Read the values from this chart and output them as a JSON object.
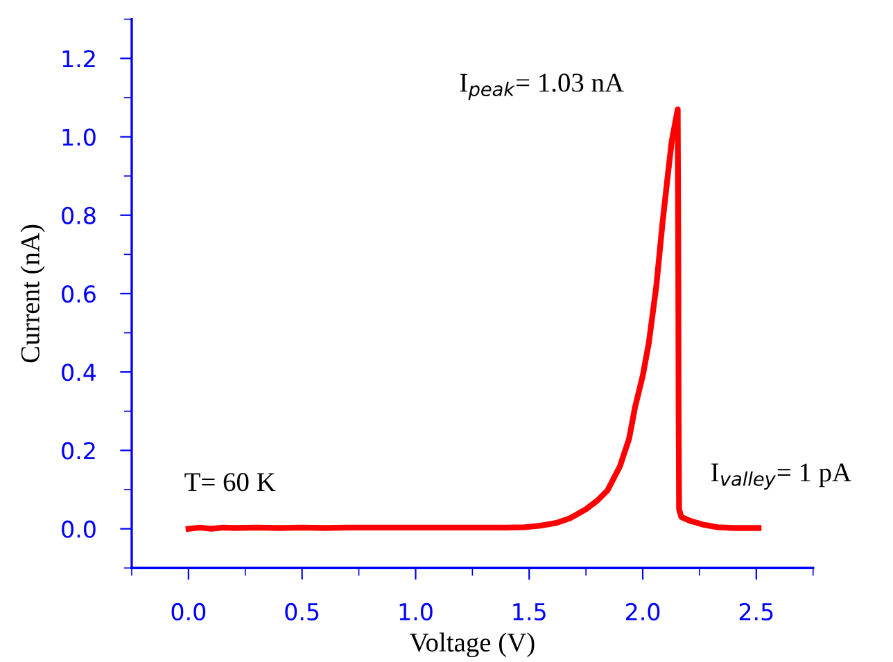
{
  "chart_data": {
    "type": "line",
    "xlabel": "Voltage (V)",
    "ylabel": "Current (nA)",
    "x": [
      0.0,
      0.05,
      0.1,
      0.15,
      0.2,
      0.3,
      0.4,
      0.5,
      0.6,
      0.7,
      0.8,
      0.9,
      1.0,
      1.2,
      1.4,
      1.48,
      1.55,
      1.62,
      1.68,
      1.75,
      1.8,
      1.845,
      1.9,
      1.94,
      1.966,
      2.0,
      2.027,
      2.06,
      2.087,
      2.11,
      2.128,
      2.154,
      2.156,
      2.158,
      2.16,
      2.17,
      2.21,
      2.27,
      2.33,
      2.4,
      2.51
    ],
    "series": [
      {
        "color": "#ff0000",
        "values": [
          0.0,
          0.003,
          0.0,
          0.003,
          0.002,
          0.003,
          0.002,
          0.003,
          0.002,
          0.003,
          0.003,
          0.003,
          0.003,
          0.003,
          0.003,
          0.004,
          0.008,
          0.015,
          0.027,
          0.05,
          0.072,
          0.098,
          0.16,
          0.23,
          0.31,
          0.39,
          0.475,
          0.62,
          0.78,
          0.9,
          0.99,
          1.07,
          0.78,
          0.3,
          0.05,
          0.03,
          0.02,
          0.01,
          0.004,
          0.002,
          0.002
        ]
      }
    ],
    "xlim": [
      -0.25,
      2.75
    ],
    "xticks": [
      {
        "value": 0,
        "label": "0.0"
      },
      0.5,
      {
        "value": 1,
        "label": "1.0"
      },
      1.5,
      {
        "value": 2,
        "label": "2.0"
      },
      2.5
    ],
    "ylim": [
      -0.1,
      1.3
    ],
    "yticks": [
      {
        "value": 0,
        "label": "0.0"
      },
      0.2,
      0.4,
      0.6,
      0.8,
      {
        "value": 1,
        "label": "1.0"
      },
      1.2
    ],
    "grid": false,
    "marker": "none",
    "line_style": "solid",
    "annotations": [
      {
        "text": "I$_{peak}$= 1.03 nA",
        "x": 2.15,
        "y": 1.03
      },
      {
        "text": "I$_{valley}$= 1 pA",
        "x": 2.51,
        "y": 0.001
      },
      "T= 60 K"
    ]
  }
}
